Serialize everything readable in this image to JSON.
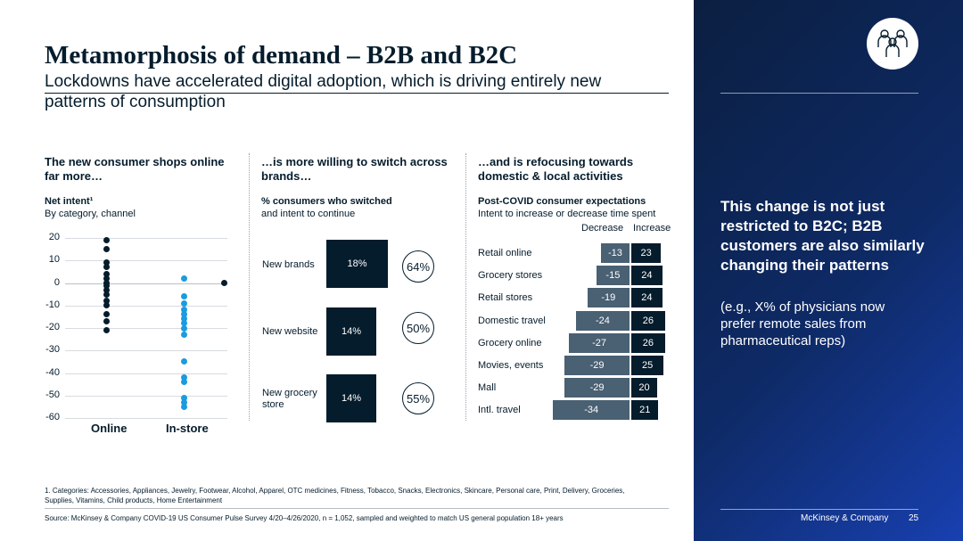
{
  "header": {
    "title": "Metamorphosis of demand – B2B and B2C",
    "subtitle": "Lockdowns have accelerated digital adoption, which is driving entirely new patterns of consumption"
  },
  "columns": [
    {
      "heading": "The new consumer shops online far more…",
      "chart_title": "Net intent¹",
      "chart_subtitle": "By category, channel"
    },
    {
      "heading": "…is more willing to switch across brands…",
      "chart_title": "% consumers who switched",
      "chart_subtitle": "and intent to continue"
    },
    {
      "heading": "…and is refocusing towards domestic & local activities",
      "chart_title": "Post-COVID consumer expectations",
      "chart_subtitle": "Intent to increase or decrease time spent"
    }
  ],
  "dot_chart": {
    "yticks": [
      "20",
      "10",
      "0",
      "-10",
      "-20",
      "-30",
      "-40",
      "-50",
      "-60"
    ],
    "categories": [
      "Online",
      "In-store"
    ]
  },
  "switch_chart": {
    "rows": [
      {
        "label": "New brands",
        "switched": "18%",
        "continue": "64%"
      },
      {
        "label": "New website",
        "switched": "14%",
        "continue": "50%"
      },
      {
        "label": "New grocery store",
        "switched": "14%",
        "continue": "55%"
      }
    ]
  },
  "expectations": {
    "legend_decrease": "Decrease",
    "legend_increase": "Increase",
    "rows": [
      {
        "label": "Retail online",
        "decrease": "-13",
        "increase": "23"
      },
      {
        "label": "Grocery stores",
        "decrease": "-15",
        "increase": "24"
      },
      {
        "label": "Retail stores",
        "decrease": "-19",
        "increase": "24"
      },
      {
        "label": "Domestic travel",
        "decrease": "-24",
        "increase": "26"
      },
      {
        "label": "Grocery online",
        "decrease": "-27",
        "increase": "26"
      },
      {
        "label": "Movies, events",
        "decrease": "-29",
        "increase": "25"
      },
      {
        "label": "Mall",
        "decrease": "-29",
        "increase": "20"
      },
      {
        "label": "Intl. travel",
        "decrease": "-34",
        "increase": "21"
      }
    ]
  },
  "chart_data": [
    {
      "type": "scatter",
      "title": "Net intent¹",
      "subtitle": "By category, channel",
      "categories": [
        "Online",
        "In-store"
      ],
      "ylim": [
        -60,
        20
      ],
      "series": [
        {
          "x": "Online",
          "values": [
            19,
            15,
            9,
            7,
            4,
            2,
            0,
            -1,
            -3,
            -5,
            -8,
            -10,
            -14,
            -17,
            -21
          ],
          "color": "#051c2c"
        },
        {
          "x": "In-store",
          "values": [
            2,
            -6,
            -9,
            -12,
            -14,
            -16,
            -18,
            -20,
            -23,
            -35,
            -42,
            -44,
            -51,
            -53,
            -55
          ],
          "color": "#1b9be0"
        },
        {
          "x": "Outlier",
          "values": [
            0
          ],
          "color": "#051c2c"
        }
      ],
      "grid": true
    },
    {
      "type": "bar",
      "title": "% consumers who switched",
      "subtitle": "and intent to continue",
      "categories": [
        "New brands",
        "New website",
        "New grocery store"
      ],
      "values": [
        18,
        14,
        14
      ],
      "annotations": [
        64,
        50,
        55
      ]
    },
    {
      "type": "bar",
      "title": "Post-COVID consumer expectations",
      "subtitle": "Intent to increase or decrease time spent",
      "categories": [
        "Retail online",
        "Grocery stores",
        "Retail stores",
        "Domestic travel",
        "Grocery online",
        "Movies, events",
        "Mall",
        "Intl. travel"
      ],
      "series": [
        {
          "name": "Decrease",
          "values": [
            -13,
            -15,
            -19,
            -24,
            -27,
            -29,
            -29,
            -34
          ]
        },
        {
          "name": "Increase",
          "values": [
            23,
            24,
            24,
            26,
            26,
            25,
            20,
            21
          ]
        }
      ]
    }
  ],
  "footnote": "1.  Categories: Accessories, Appliances, Jewelry, Footwear, Alcohol, Apparel, OTC medicines, Fitness, Tobacco, Snacks, Electronics, Skincare, Personal care, Print, Delivery, Groceries, Supplies, Vitamins, Child products, Home Entertainment",
  "source": "Source: McKinsey & Company COVID-19 US Consumer Pulse Survey 4/20–4/26/2020, n = 1,052, sampled and weighted to match US general population 18+ years",
  "panel": {
    "headline": "This change is not just restricted to B2C; B2B customers are also similarly changing their patterns",
    "body": "(e.g., X% of physicians now prefer remote sales from pharmaceutical reps)",
    "brand": "McKinsey & Company",
    "page_number": "25",
    "icon": "people-group-icon"
  }
}
